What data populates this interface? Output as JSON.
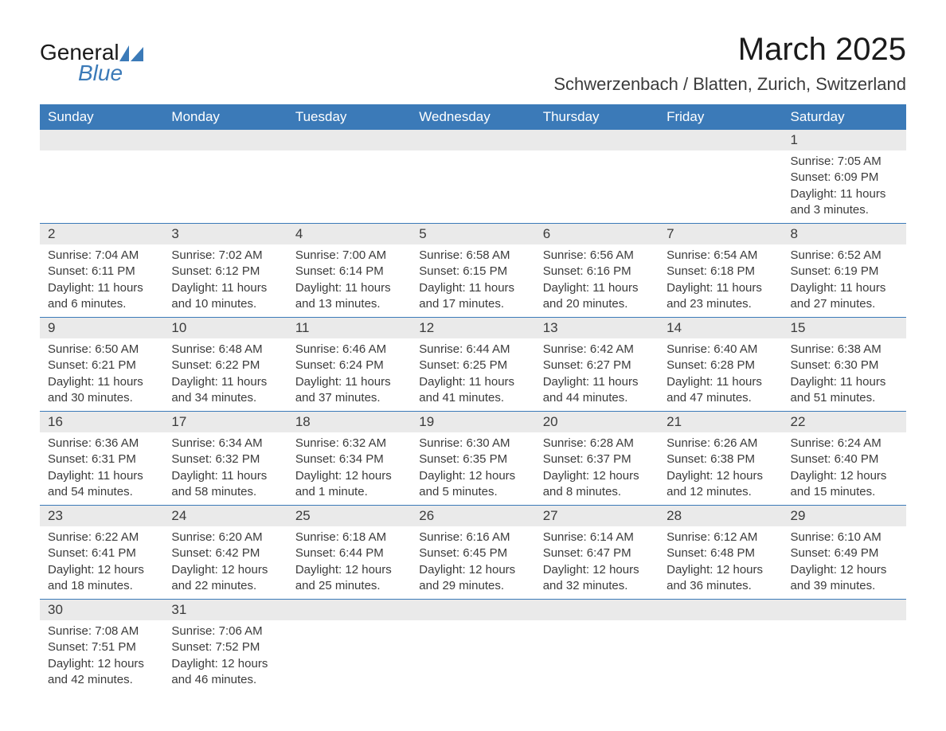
{
  "logo": {
    "general": "General",
    "blue": "Blue"
  },
  "header": {
    "month_title": "March 2025",
    "location": "Schwerzenbach / Blatten, Zurich, Switzerland"
  },
  "colors": {
    "header_bg": "#3b7ab8",
    "header_text": "#ffffff",
    "day_number_bg": "#eaeaea",
    "text_color": "#3b3b3b",
    "border_color": "#3b7ab8",
    "logo_blue": "#3b7ab8"
  },
  "day_headers": [
    "Sunday",
    "Monday",
    "Tuesday",
    "Wednesday",
    "Thursday",
    "Friday",
    "Saturday"
  ],
  "weeks": [
    [
      {
        "day": "",
        "sunrise": "",
        "sunset": "",
        "daylight": ""
      },
      {
        "day": "",
        "sunrise": "",
        "sunset": "",
        "daylight": ""
      },
      {
        "day": "",
        "sunrise": "",
        "sunset": "",
        "daylight": ""
      },
      {
        "day": "",
        "sunrise": "",
        "sunset": "",
        "daylight": ""
      },
      {
        "day": "",
        "sunrise": "",
        "sunset": "",
        "daylight": ""
      },
      {
        "day": "",
        "sunrise": "",
        "sunset": "",
        "daylight": ""
      },
      {
        "day": "1",
        "sunrise": "Sunrise: 7:05 AM",
        "sunset": "Sunset: 6:09 PM",
        "daylight": "Daylight: 11 hours and 3 minutes."
      }
    ],
    [
      {
        "day": "2",
        "sunrise": "Sunrise: 7:04 AM",
        "sunset": "Sunset: 6:11 PM",
        "daylight": "Daylight: 11 hours and 6 minutes."
      },
      {
        "day": "3",
        "sunrise": "Sunrise: 7:02 AM",
        "sunset": "Sunset: 6:12 PM",
        "daylight": "Daylight: 11 hours and 10 minutes."
      },
      {
        "day": "4",
        "sunrise": "Sunrise: 7:00 AM",
        "sunset": "Sunset: 6:14 PM",
        "daylight": "Daylight: 11 hours and 13 minutes."
      },
      {
        "day": "5",
        "sunrise": "Sunrise: 6:58 AM",
        "sunset": "Sunset: 6:15 PM",
        "daylight": "Daylight: 11 hours and 17 minutes."
      },
      {
        "day": "6",
        "sunrise": "Sunrise: 6:56 AM",
        "sunset": "Sunset: 6:16 PM",
        "daylight": "Daylight: 11 hours and 20 minutes."
      },
      {
        "day": "7",
        "sunrise": "Sunrise: 6:54 AM",
        "sunset": "Sunset: 6:18 PM",
        "daylight": "Daylight: 11 hours and 23 minutes."
      },
      {
        "day": "8",
        "sunrise": "Sunrise: 6:52 AM",
        "sunset": "Sunset: 6:19 PM",
        "daylight": "Daylight: 11 hours and 27 minutes."
      }
    ],
    [
      {
        "day": "9",
        "sunrise": "Sunrise: 6:50 AM",
        "sunset": "Sunset: 6:21 PM",
        "daylight": "Daylight: 11 hours and 30 minutes."
      },
      {
        "day": "10",
        "sunrise": "Sunrise: 6:48 AM",
        "sunset": "Sunset: 6:22 PM",
        "daylight": "Daylight: 11 hours and 34 minutes."
      },
      {
        "day": "11",
        "sunrise": "Sunrise: 6:46 AM",
        "sunset": "Sunset: 6:24 PM",
        "daylight": "Daylight: 11 hours and 37 minutes."
      },
      {
        "day": "12",
        "sunrise": "Sunrise: 6:44 AM",
        "sunset": "Sunset: 6:25 PM",
        "daylight": "Daylight: 11 hours and 41 minutes."
      },
      {
        "day": "13",
        "sunrise": "Sunrise: 6:42 AM",
        "sunset": "Sunset: 6:27 PM",
        "daylight": "Daylight: 11 hours and 44 minutes."
      },
      {
        "day": "14",
        "sunrise": "Sunrise: 6:40 AM",
        "sunset": "Sunset: 6:28 PM",
        "daylight": "Daylight: 11 hours and 47 minutes."
      },
      {
        "day": "15",
        "sunrise": "Sunrise: 6:38 AM",
        "sunset": "Sunset: 6:30 PM",
        "daylight": "Daylight: 11 hours and 51 minutes."
      }
    ],
    [
      {
        "day": "16",
        "sunrise": "Sunrise: 6:36 AM",
        "sunset": "Sunset: 6:31 PM",
        "daylight": "Daylight: 11 hours and 54 minutes."
      },
      {
        "day": "17",
        "sunrise": "Sunrise: 6:34 AM",
        "sunset": "Sunset: 6:32 PM",
        "daylight": "Daylight: 11 hours and 58 minutes."
      },
      {
        "day": "18",
        "sunrise": "Sunrise: 6:32 AM",
        "sunset": "Sunset: 6:34 PM",
        "daylight": "Daylight: 12 hours and 1 minute."
      },
      {
        "day": "19",
        "sunrise": "Sunrise: 6:30 AM",
        "sunset": "Sunset: 6:35 PM",
        "daylight": "Daylight: 12 hours and 5 minutes."
      },
      {
        "day": "20",
        "sunrise": "Sunrise: 6:28 AM",
        "sunset": "Sunset: 6:37 PM",
        "daylight": "Daylight: 12 hours and 8 minutes."
      },
      {
        "day": "21",
        "sunrise": "Sunrise: 6:26 AM",
        "sunset": "Sunset: 6:38 PM",
        "daylight": "Daylight: 12 hours and 12 minutes."
      },
      {
        "day": "22",
        "sunrise": "Sunrise: 6:24 AM",
        "sunset": "Sunset: 6:40 PM",
        "daylight": "Daylight: 12 hours and 15 minutes."
      }
    ],
    [
      {
        "day": "23",
        "sunrise": "Sunrise: 6:22 AM",
        "sunset": "Sunset: 6:41 PM",
        "daylight": "Daylight: 12 hours and 18 minutes."
      },
      {
        "day": "24",
        "sunrise": "Sunrise: 6:20 AM",
        "sunset": "Sunset: 6:42 PM",
        "daylight": "Daylight: 12 hours and 22 minutes."
      },
      {
        "day": "25",
        "sunrise": "Sunrise: 6:18 AM",
        "sunset": "Sunset: 6:44 PM",
        "daylight": "Daylight: 12 hours and 25 minutes."
      },
      {
        "day": "26",
        "sunrise": "Sunrise: 6:16 AM",
        "sunset": "Sunset: 6:45 PM",
        "daylight": "Daylight: 12 hours and 29 minutes."
      },
      {
        "day": "27",
        "sunrise": "Sunrise: 6:14 AM",
        "sunset": "Sunset: 6:47 PM",
        "daylight": "Daylight: 12 hours and 32 minutes."
      },
      {
        "day": "28",
        "sunrise": "Sunrise: 6:12 AM",
        "sunset": "Sunset: 6:48 PM",
        "daylight": "Daylight: 12 hours and 36 minutes."
      },
      {
        "day": "29",
        "sunrise": "Sunrise: 6:10 AM",
        "sunset": "Sunset: 6:49 PM",
        "daylight": "Daylight: 12 hours and 39 minutes."
      }
    ],
    [
      {
        "day": "30",
        "sunrise": "Sunrise: 7:08 AM",
        "sunset": "Sunset: 7:51 PM",
        "daylight": "Daylight: 12 hours and 42 minutes."
      },
      {
        "day": "31",
        "sunrise": "Sunrise: 7:06 AM",
        "sunset": "Sunset: 7:52 PM",
        "daylight": "Daylight: 12 hours and 46 minutes."
      },
      {
        "day": "",
        "sunrise": "",
        "sunset": "",
        "daylight": ""
      },
      {
        "day": "",
        "sunrise": "",
        "sunset": "",
        "daylight": ""
      },
      {
        "day": "",
        "sunrise": "",
        "sunset": "",
        "daylight": ""
      },
      {
        "day": "",
        "sunrise": "",
        "sunset": "",
        "daylight": ""
      },
      {
        "day": "",
        "sunrise": "",
        "sunset": "",
        "daylight": ""
      }
    ]
  ]
}
